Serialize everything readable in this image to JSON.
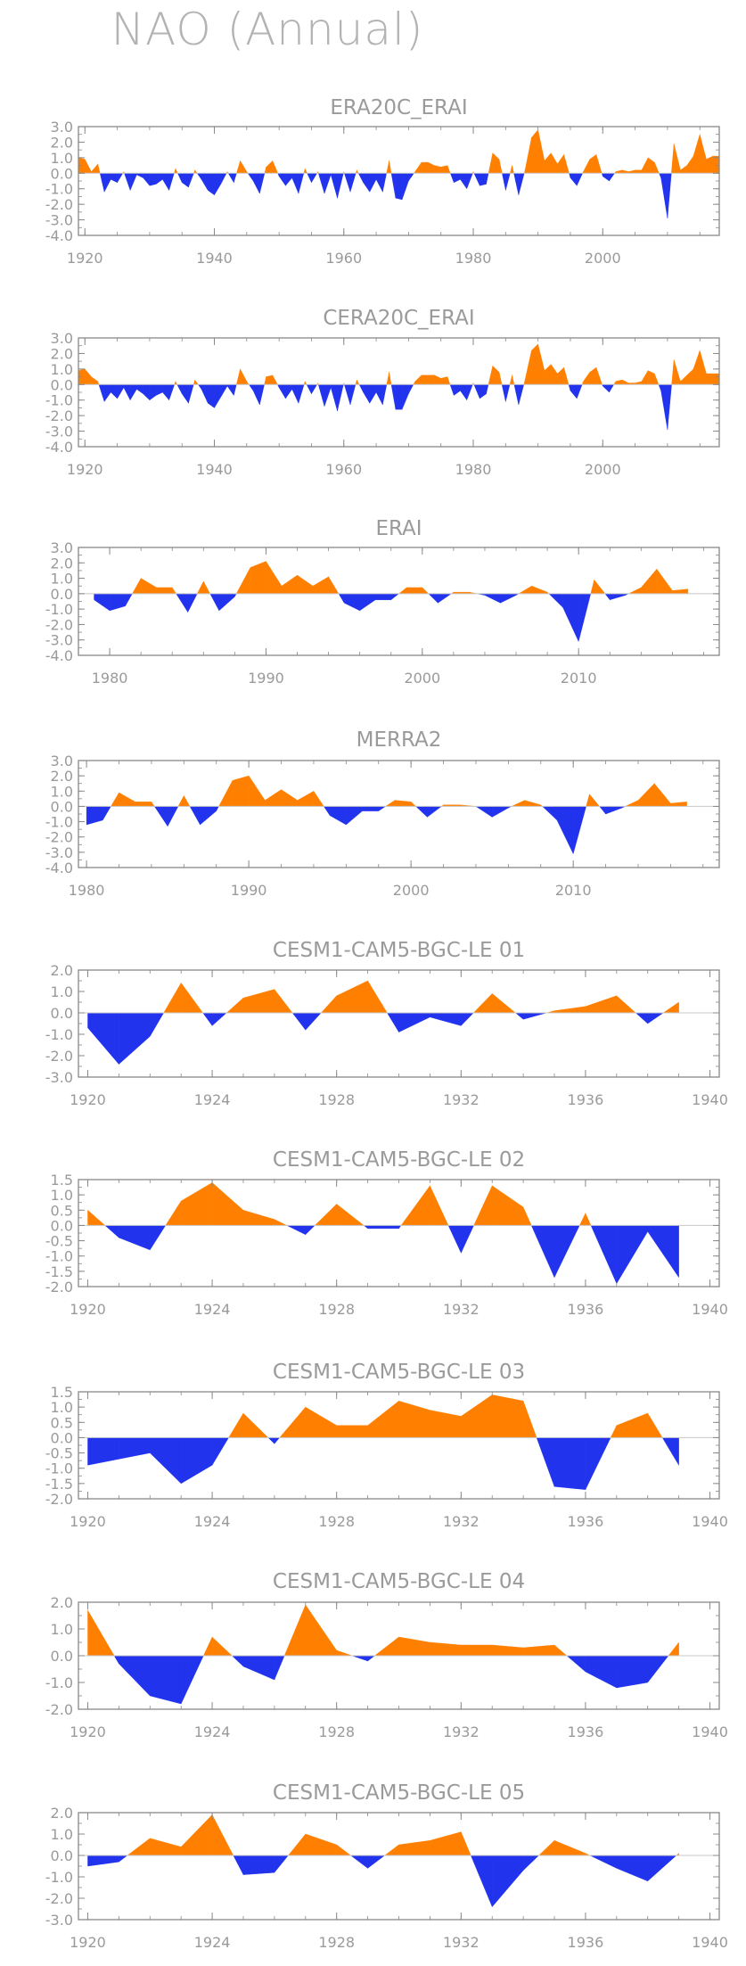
{
  "title": "NAO (Annual)",
  "colors": {
    "positive": "#ff8000",
    "negative": "#2233ee",
    "axis": "#888888",
    "zero_line": "#c8c8c8"
  },
  "chart_data": [
    {
      "type": "area",
      "title": "ERA20C_ERAI",
      "xlim": [
        1919,
        2018
      ],
      "ylim": [
        -4,
        3
      ],
      "yticks": [
        3,
        2,
        1,
        0,
        -1,
        -2,
        -3,
        -4
      ],
      "ytick_labels": [
        "3.0",
        "2.0",
        "1.0",
        "0.0",
        "-1.0",
        "-2.0",
        "-3.0",
        "-4.0"
      ],
      "xticks": [
        1920,
        1940,
        1960,
        1980,
        2000
      ],
      "x": [
        1919,
        1920,
        1921,
        1922,
        1923,
        1924,
        1925,
        1926,
        1927,
        1928,
        1929,
        1930,
        1931,
        1932,
        1933,
        1934,
        1935,
        1936,
        1937,
        1938,
        1939,
        1940,
        1941,
        1942,
        1943,
        1944,
        1945,
        1946,
        1947,
        1948,
        1949,
        1950,
        1951,
        1952,
        1953,
        1954,
        1955,
        1956,
        1957,
        1958,
        1959,
        1960,
        1961,
        1962,
        1963,
        1964,
        1965,
        1966,
        1967,
        1968,
        1969,
        1970,
        1971,
        1972,
        1973,
        1974,
        1975,
        1976,
        1977,
        1978,
        1979,
        1980,
        1981,
        1982,
        1983,
        1984,
        1985,
        1986,
        1987,
        1988,
        1989,
        1990,
        1991,
        1992,
        1993,
        1994,
        1995,
        1996,
        1997,
        1998,
        1999,
        2000,
        2001,
        2002,
        2003,
        2004,
        2005,
        2006,
        2007,
        2008,
        2009,
        2010,
        2011,
        2012,
        2013,
        2014,
        2015,
        2016,
        2017,
        2018
      ],
      "y": [
        1.0,
        0.9,
        0.1,
        0.6,
        -1.2,
        -0.4,
        -0.6,
        0.1,
        -1.1,
        -0.1,
        -0.3,
        -0.8,
        -0.7,
        -0.4,
        -1.1,
        0.3,
        -0.6,
        -0.9,
        0.2,
        -0.4,
        -1.1,
        -1.4,
        -0.7,
        0.1,
        -0.6,
        0.8,
        0.1,
        -0.5,
        -1.3,
        0.4,
        0.8,
        -0.2,
        -0.8,
        -0.3,
        -1.3,
        0.3,
        -0.6,
        0.1,
        -1.3,
        -0.1,
        -1.6,
        0.1,
        -1.2,
        0.2,
        -0.6,
        -1.2,
        -0.4,
        -1.2,
        0.8,
        -1.6,
        -1.7,
        -0.5,
        0.1,
        0.7,
        0.7,
        0.5,
        0.4,
        0.5,
        -0.6,
        -0.4,
        -1.0,
        0.1,
        -0.8,
        -0.7,
        1.3,
        0.9,
        -1.1,
        0.5,
        -1.4,
        0.2,
        2.3,
        2.8,
        0.8,
        1.3,
        0.6,
        1.2,
        -0.3,
        -0.8,
        0.1,
        0.9,
        1.2,
        -0.2,
        -0.5,
        0.1,
        0.2,
        0.1,
        0.2,
        0.2,
        1.0,
        0.7,
        -0.3,
        -2.9,
        1.9,
        0.2,
        0.5,
        1.1,
        2.5,
        0.9,
        1.1,
        1.1
      ]
    },
    {
      "type": "area",
      "title": "CERA20C_ERAI",
      "xlim": [
        1919,
        2018
      ],
      "ylim": [
        -4,
        3
      ],
      "yticks": [
        3,
        2,
        1,
        0,
        -1,
        -2,
        -3,
        -4
      ],
      "ytick_labels": [
        "3.0",
        "2.0",
        "1.0",
        "0.0",
        "-1.0",
        "-2.0",
        "-3.0",
        "-4.0"
      ],
      "xticks": [
        1920,
        1940,
        1960,
        1980,
        2000
      ],
      "x": [
        1919,
        1920,
        1921,
        1922,
        1923,
        1924,
        1925,
        1926,
        1927,
        1928,
        1929,
        1930,
        1931,
        1932,
        1933,
        1934,
        1935,
        1936,
        1937,
        1938,
        1939,
        1940,
        1941,
        1942,
        1943,
        1944,
        1945,
        1946,
        1947,
        1948,
        1949,
        1950,
        1951,
        1952,
        1953,
        1954,
        1955,
        1956,
        1957,
        1958,
        1959,
        1960,
        1961,
        1962,
        1963,
        1964,
        1965,
        1966,
        1967,
        1968,
        1969,
        1970,
        1971,
        1972,
        1973,
        1974,
        1975,
        1976,
        1977,
        1978,
        1979,
        1980,
        1981,
        1982,
        1983,
        1984,
        1985,
        1986,
        1987,
        1988,
        1989,
        1990,
        1991,
        1992,
        1993,
        1994,
        1995,
        1996,
        1997,
        1998,
        1999,
        2000,
        2001,
        2002,
        2003,
        2004,
        2005,
        2006,
        2007,
        2008,
        2009,
        2010,
        2011,
        2012,
        2013,
        2014,
        2015,
        2016,
        2017,
        2018
      ],
      "y": [
        0.9,
        1.0,
        0.5,
        0.2,
        -1.1,
        -0.5,
        -0.9,
        -0.2,
        -1.0,
        -0.3,
        -0.6,
        -1.0,
        -0.7,
        -0.5,
        -1.0,
        0.2,
        -0.6,
        -1.2,
        0.3,
        -0.3,
        -1.2,
        -1.5,
        -0.8,
        -0.1,
        -0.7,
        1.0,
        0.2,
        -0.4,
        -1.3,
        0.5,
        0.6,
        -0.2,
        -0.9,
        -0.3,
        -1.2,
        0.2,
        -0.6,
        0.1,
        -1.4,
        -0.2,
        -1.7,
        0.1,
        -1.3,
        0.3,
        -0.5,
        -1.2,
        -0.5,
        -1.3,
        0.8,
        -1.6,
        -1.6,
        -0.6,
        0.2,
        0.6,
        0.6,
        0.6,
        0.4,
        0.5,
        -0.7,
        -0.4,
        -1.0,
        0.1,
        -0.9,
        -0.6,
        1.2,
        0.8,
        -1.1,
        0.6,
        -1.3,
        0.3,
        2.2,
        2.6,
        0.9,
        1.3,
        0.7,
        1.1,
        -0.4,
        -0.9,
        0.2,
        0.8,
        1.1,
        -0.1,
        -0.5,
        0.2,
        0.3,
        0.1,
        0.1,
        0.2,
        0.9,
        0.7,
        -0.4,
        -2.9,
        1.6,
        0.2,
        0.6,
        1.0,
        2.2,
        0.7,
        0.7,
        0.7
      ]
    },
    {
      "type": "area",
      "title": "ERAI",
      "xlim": [
        1978,
        2019
      ],
      "ylim": [
        -4,
        3
      ],
      "yticks": [
        3,
        2,
        1,
        0,
        -1,
        -2,
        -3,
        -4
      ],
      "ytick_labels": [
        "3.0",
        "2.0",
        "1.0",
        "0.0",
        "-1.0",
        "-2.0",
        "-3.0",
        "-4.0"
      ],
      "xticks": [
        1980,
        1990,
        2000,
        2010
      ],
      "x": [
        1979,
        1980,
        1981,
        1982,
        1983,
        1984,
        1985,
        1986,
        1987,
        1988,
        1989,
        1990,
        1991,
        1992,
        1993,
        1994,
        1995,
        1996,
        1997,
        1998,
        1999,
        2000,
        2001,
        2002,
        2003,
        2004,
        2005,
        2006,
        2007,
        2008,
        2009,
        2010,
        2011,
        2012,
        2013,
        2014,
        2015,
        2016,
        2017
      ],
      "y": [
        -0.4,
        -1.1,
        -0.8,
        1.0,
        0.4,
        0.4,
        -1.2,
        0.8,
        -1.1,
        -0.2,
        1.7,
        2.1,
        0.5,
        1.2,
        0.5,
        1.1,
        -0.6,
        -1.1,
        -0.4,
        -0.4,
        0.4,
        0.4,
        -0.6,
        0.1,
        0.1,
        -0.1,
        -0.6,
        -0.1,
        0.5,
        0.1,
        -0.9,
        -3.1,
        0.9,
        -0.4,
        -0.1,
        0.4,
        1.6,
        0.2,
        0.3
      ]
    },
    {
      "type": "area",
      "title": "MERRA2",
      "xlim": [
        1979.5,
        2019
      ],
      "ylim": [
        -4,
        3
      ],
      "yticks": [
        3,
        2,
        1,
        0,
        -1,
        -2,
        -3,
        -4
      ],
      "ytick_labels": [
        "3.0",
        "2.0",
        "1.0",
        "0.0",
        "-1.0",
        "-2.0",
        "-3.0",
        "-4.0"
      ],
      "xticks": [
        1980,
        1990,
        2000,
        2010
      ],
      "x": [
        1980,
        1981,
        1982,
        1983,
        1984,
        1985,
        1986,
        1987,
        1988,
        1989,
        1990,
        1991,
        1992,
        1993,
        1994,
        1995,
        1996,
        1997,
        1998,
        1999,
        2000,
        2001,
        2002,
        2003,
        2004,
        2005,
        2006,
        2007,
        2008,
        2009,
        2010,
        2011,
        2012,
        2013,
        2014,
        2015,
        2016,
        2017
      ],
      "y": [
        -1.2,
        -0.9,
        0.9,
        0.3,
        0.3,
        -1.3,
        0.7,
        -1.2,
        -0.3,
        1.7,
        2.0,
        0.4,
        1.1,
        0.4,
        1.0,
        -0.6,
        -1.2,
        -0.3,
        -0.3,
        0.4,
        0.3,
        -0.7,
        0.1,
        0.1,
        0.0,
        -0.7,
        -0.1,
        0.4,
        0.1,
        -0.9,
        -3.1,
        0.8,
        -0.5,
        -0.1,
        0.4,
        1.5,
        0.2,
        0.3
      ]
    },
    {
      "type": "area",
      "title": "CESM1-CAM5-BGC-LE 01",
      "xlim": [
        1919.7,
        1940.3
      ],
      "ylim": [
        -3,
        2
      ],
      "yticks": [
        2,
        1,
        0,
        -1,
        -2,
        -3
      ],
      "ytick_labels": [
        "2.0",
        "1.0",
        "0.0",
        "-1.0",
        "-2.0",
        "-3.0"
      ],
      "xticks": [
        1920,
        1924,
        1928,
        1932,
        1936,
        1940
      ],
      "x": [
        1920,
        1921,
        1922,
        1923,
        1924,
        1925,
        1926,
        1927,
        1928,
        1929,
        1930,
        1931,
        1932,
        1933,
        1934,
        1935,
        1936,
        1937,
        1938,
        1939
      ],
      "y": [
        -0.7,
        -2.4,
        -1.1,
        1.4,
        -0.6,
        0.7,
        1.1,
        -0.8,
        0.8,
        1.5,
        -0.9,
        -0.2,
        -0.6,
        0.9,
        -0.3,
        0.1,
        0.3,
        0.8,
        -0.5,
        0.5
      ]
    },
    {
      "type": "area",
      "title": "CESM1-CAM5-BGC-LE 02",
      "xlim": [
        1919.7,
        1940.3
      ],
      "ylim": [
        -2,
        1.5
      ],
      "yticks": [
        1.5,
        1,
        0.5,
        0,
        -0.5,
        -1,
        -1.5,
        -2
      ],
      "ytick_labels": [
        "1.5",
        "1.0",
        "0.5",
        "0.0",
        "-0.5",
        "-1.0",
        "-1.5",
        "-2.0"
      ],
      "xticks": [
        1920,
        1924,
        1928,
        1932,
        1936,
        1940
      ],
      "x": [
        1920,
        1921,
        1922,
        1923,
        1924,
        1925,
        1926,
        1927,
        1928,
        1929,
        1930,
        1931,
        1932,
        1933,
        1934,
        1935,
        1936,
        1937,
        1938,
        1939
      ],
      "y": [
        0.5,
        -0.4,
        -0.8,
        0.8,
        1.4,
        0.5,
        0.2,
        -0.3,
        0.7,
        -0.1,
        -0.1,
        1.3,
        -0.9,
        1.3,
        0.6,
        -1.7,
        0.4,
        -1.9,
        -0.2,
        -1.7
      ]
    },
    {
      "type": "area",
      "title": "CESM1-CAM5-BGC-LE 03",
      "xlim": [
        1919.7,
        1940.3
      ],
      "ylim": [
        -2,
        1.5
      ],
      "yticks": [
        1.5,
        1,
        0.5,
        0,
        -0.5,
        -1,
        -1.5,
        -2
      ],
      "ytick_labels": [
        "1.5",
        "1.0",
        "0.5",
        "0.0",
        "-0.5",
        "-1.0",
        "-1.5",
        "-2.0"
      ],
      "xticks": [
        1920,
        1924,
        1928,
        1932,
        1936,
        1940
      ],
      "x": [
        1920,
        1921,
        1922,
        1923,
        1924,
        1925,
        1926,
        1927,
        1928,
        1929,
        1930,
        1931,
        1932,
        1933,
        1934,
        1935,
        1936,
        1937,
        1938,
        1939
      ],
      "y": [
        -0.9,
        -0.7,
        -0.5,
        -1.5,
        -0.9,
        0.8,
        -0.2,
        1.0,
        0.4,
        0.4,
        1.2,
        0.9,
        0.7,
        1.4,
        1.2,
        -1.6,
        -1.7,
        0.4,
        0.8,
        -0.9
      ]
    },
    {
      "type": "area",
      "title": "CESM1-CAM5-BGC-LE 04",
      "xlim": [
        1919.7,
        1940.3
      ],
      "ylim": [
        -2,
        2
      ],
      "yticks": [
        2,
        1,
        0,
        -1,
        -2
      ],
      "ytick_labels": [
        "2.0",
        "1.0",
        "0.0",
        "-1.0",
        "-2.0"
      ],
      "xticks": [
        1920,
        1924,
        1928,
        1932,
        1936,
        1940
      ],
      "x": [
        1920,
        1921,
        1922,
        1923,
        1924,
        1925,
        1926,
        1927,
        1928,
        1929,
        1930,
        1931,
        1932,
        1933,
        1934,
        1935,
        1936,
        1937,
        1938,
        1939
      ],
      "y": [
        1.7,
        -0.3,
        -1.5,
        -1.8,
        0.7,
        -0.4,
        -0.9,
        1.9,
        0.2,
        -0.2,
        0.7,
        0.5,
        0.4,
        0.4,
        0.3,
        0.4,
        -0.6,
        -1.2,
        -1.0,
        0.5
      ]
    },
    {
      "type": "area",
      "title": "CESM1-CAM5-BGC-LE 05",
      "xlim": [
        1919.7,
        1940.3
      ],
      "ylim": [
        -3,
        2
      ],
      "yticks": [
        2,
        1,
        0,
        -1,
        -2,
        -3
      ],
      "ytick_labels": [
        "2.0",
        "1.0",
        "0.0",
        "-1.0",
        "-2.0",
        "-3.0"
      ],
      "xticks": [
        1920,
        1924,
        1928,
        1932,
        1936,
        1940
      ],
      "x": [
        1920,
        1921,
        1922,
        1923,
        1924,
        1925,
        1926,
        1927,
        1928,
        1929,
        1930,
        1931,
        1932,
        1933,
        1934,
        1935,
        1936,
        1937,
        1938,
        1939
      ],
      "y": [
        -0.5,
        -0.3,
        0.8,
        0.4,
        1.9,
        -0.9,
        -0.8,
        1.0,
        0.5,
        -0.6,
        0.5,
        0.7,
        1.1,
        -2.4,
        -0.7,
        0.7,
        0.1,
        -0.6,
        -1.2,
        0.1
      ]
    }
  ]
}
